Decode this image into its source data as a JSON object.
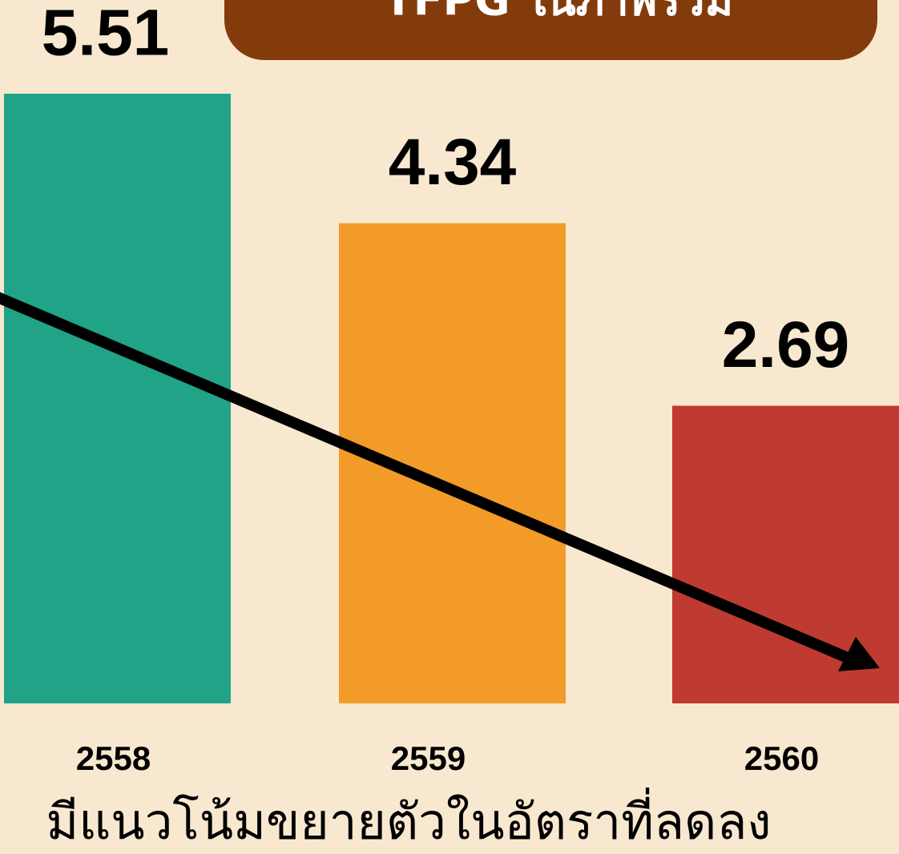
{
  "chart_data": {
    "type": "bar",
    "title": "TFPG ในภาพรวม",
    "categories": [
      "2558",
      "2559",
      "2560"
    ],
    "values": [
      5.51,
      4.34,
      2.69
    ],
    "colors": [
      "#20a386",
      "#f29b29",
      "#bf3a31"
    ],
    "caption": "มีแนวโน้มขยายตัวในอัตราที่ลดลง"
  }
}
